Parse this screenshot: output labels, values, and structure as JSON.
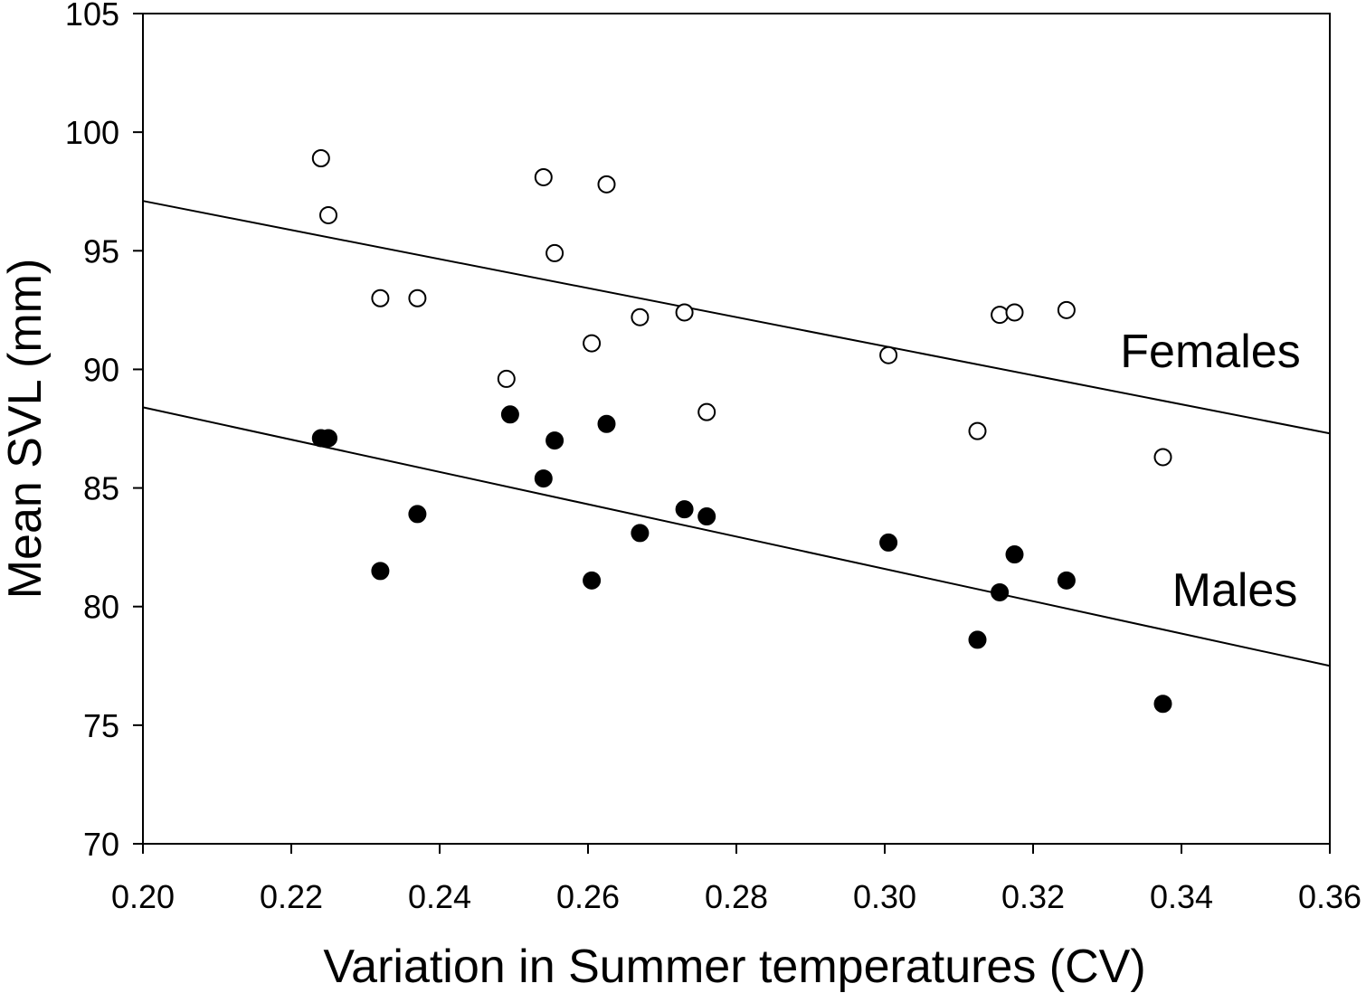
{
  "chart_data": {
    "type": "scatter",
    "xlabel": "Variation in Summer temperatures (CV)",
    "ylabel": "Mean SVL (mm)",
    "xlim": [
      0.2,
      0.36
    ],
    "ylim": [
      70,
      105
    ],
    "xticks": [
      "0.20",
      "0.22",
      "0.24",
      "0.26",
      "0.28",
      "0.30",
      "0.32",
      "0.34",
      "0.36"
    ],
    "yticks": [
      "70",
      "75",
      "80",
      "85",
      "90",
      "95",
      "100",
      "105"
    ],
    "grid": false,
    "series": [
      {
        "name": "Females",
        "marker": "open-circle",
        "color": "#000000",
        "points": [
          {
            "x": 0.224,
            "y": 98.9
          },
          {
            "x": 0.225,
            "y": 96.5
          },
          {
            "x": 0.232,
            "y": 93.0
          },
          {
            "x": 0.237,
            "y": 93.0
          },
          {
            "x": 0.249,
            "y": 89.6
          },
          {
            "x": 0.254,
            "y": 98.1
          },
          {
            "x": 0.2555,
            "y": 94.9
          },
          {
            "x": 0.2605,
            "y": 91.1
          },
          {
            "x": 0.2625,
            "y": 97.8
          },
          {
            "x": 0.267,
            "y": 92.2
          },
          {
            "x": 0.273,
            "y": 92.4
          },
          {
            "x": 0.276,
            "y": 88.2
          },
          {
            "x": 0.3005,
            "y": 90.6
          },
          {
            "x": 0.3125,
            "y": 87.4
          },
          {
            "x": 0.3155,
            "y": 92.3
          },
          {
            "x": 0.3175,
            "y": 92.4
          },
          {
            "x": 0.3245,
            "y": 92.5
          },
          {
            "x": 0.3375,
            "y": 86.3
          }
        ],
        "fit": {
          "x": [
            0.2,
            0.36
          ],
          "y": [
            97.1,
            87.3
          ]
        }
      },
      {
        "name": "Males",
        "marker": "filled-circle",
        "color": "#000000",
        "points": [
          {
            "x": 0.224,
            "y": 87.1
          },
          {
            "x": 0.225,
            "y": 87.1
          },
          {
            "x": 0.232,
            "y": 81.5
          },
          {
            "x": 0.237,
            "y": 83.9
          },
          {
            "x": 0.2495,
            "y": 88.1
          },
          {
            "x": 0.254,
            "y": 85.4
          },
          {
            "x": 0.2555,
            "y": 87.0
          },
          {
            "x": 0.2605,
            "y": 81.1
          },
          {
            "x": 0.2625,
            "y": 87.7
          },
          {
            "x": 0.267,
            "y": 83.1
          },
          {
            "x": 0.273,
            "y": 84.1
          },
          {
            "x": 0.276,
            "y": 83.8
          },
          {
            "x": 0.3005,
            "y": 82.7
          },
          {
            "x": 0.3125,
            "y": 78.6
          },
          {
            "x": 0.3155,
            "y": 80.6
          },
          {
            "x": 0.3175,
            "y": 82.2
          },
          {
            "x": 0.3245,
            "y": 81.1
          },
          {
            "x": 0.3375,
            "y": 75.9
          }
        ],
        "fit": {
          "x": [
            0.2,
            0.36
          ],
          "y": [
            88.4,
            77.5
          ]
        }
      }
    ],
    "annotations": [
      {
        "text": "Females",
        "series": "Females"
      },
      {
        "text": "Males",
        "series": "Males"
      }
    ]
  }
}
